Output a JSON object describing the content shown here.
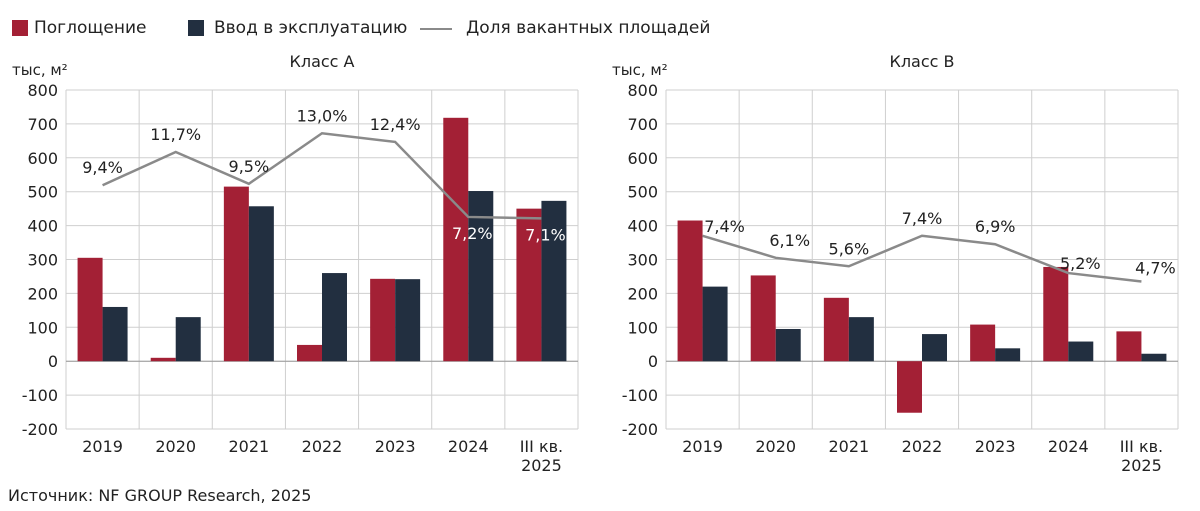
{
  "legend": {
    "items": [
      {
        "label": "Поглощение",
        "color": "#A32035",
        "kind": "bar"
      },
      {
        "label": "Ввод в эксплуатацию",
        "color": "#222F40",
        "kind": "bar"
      },
      {
        "label": "Доля вакантных площадей",
        "color": "#8A8A8A",
        "kind": "line"
      }
    ]
  },
  "source": "Источник: NF GROUP Research, 2025",
  "chart_data": [
    {
      "type": "bar",
      "title": "Класс  А",
      "ylabel": "тыс, м²",
      "ylim": [
        -200,
        800
      ],
      "yticks": [
        800,
        700,
        600,
        500,
        400,
        300,
        200,
        100,
        0,
        -100,
        -200
      ],
      "categories": [
        [
          "2019"
        ],
        [
          "2020"
        ],
        [
          "2021"
        ],
        [
          "2022"
        ],
        [
          "2023"
        ],
        [
          "2024"
        ],
        [
          "III кв.",
          "2025"
        ]
      ],
      "series": [
        {
          "name": "Поглощение",
          "color": "#A32035",
          "values": [
            305,
            10,
            515,
            48,
            243,
            718,
            450
          ]
        },
        {
          "name": "Ввод в эксплуатацию",
          "color": "#222F40",
          "values": [
            160,
            130,
            457,
            260,
            242,
            502,
            473
          ]
        }
      ],
      "line": {
        "name": "Доля вакантных площадей",
        "color": "#8A8A8A",
        "values": [
          9.4,
          11.7,
          9.5,
          13.0,
          12.4,
          7.2,
          7.1
        ],
        "labels": [
          "9,4%",
          "11,7%",
          "9,5%",
          "13,0%",
          "12,4%",
          "7,2%",
          "7,1%"
        ],
        "ylim": [
          -7.5,
          16.0
        ]
      },
      "grid": true
    },
    {
      "type": "bar",
      "title": "Класс  В",
      "ylabel": "тыс, м²",
      "ylim": [
        -200,
        800
      ],
      "yticks": [
        800,
        700,
        600,
        500,
        400,
        300,
        200,
        100,
        0,
        -100,
        -200
      ],
      "categories": [
        [
          "2019"
        ],
        [
          "2020"
        ],
        [
          "2021"
        ],
        [
          "2022"
        ],
        [
          "2023"
        ],
        [
          "2024"
        ],
        [
          "III кв.",
          "2025"
        ]
      ],
      "series": [
        {
          "name": "Поглощение",
          "color": "#A32035",
          "values": [
            415,
            253,
            187,
            -152,
            108,
            278,
            88
          ]
        },
        {
          "name": "Ввод в эксплуатацию",
          "color": "#222F40",
          "values": [
            220,
            95,
            130,
            80,
            38,
            58,
            22
          ]
        }
      ],
      "line": {
        "name": "Доля вакантных площадей",
        "color": "#8A8A8A",
        "values": [
          7.4,
          6.1,
          5.6,
          7.4,
          6.9,
          5.2,
          4.7
        ],
        "labels": [
          "7,4%",
          "6,1%",
          "5,6%",
          "7,4%",
          "6,9%",
          "5,2%",
          "4,7%"
        ],
        "ylim": [
          -4.0,
          16.0
        ]
      },
      "grid": true
    }
  ]
}
